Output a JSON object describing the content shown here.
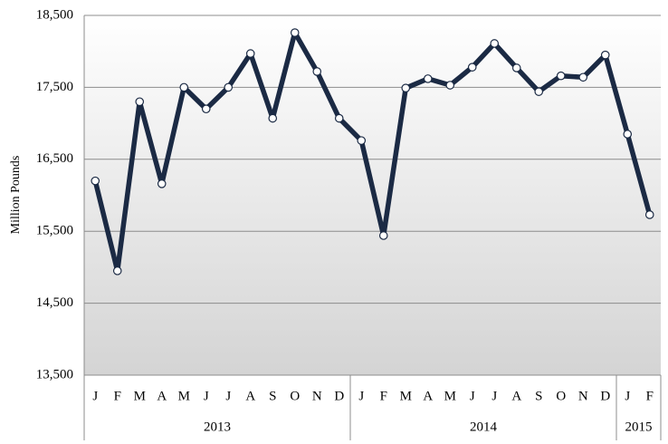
{
  "chart_data": {
    "type": "line",
    "y_label": "Million Pounds",
    "categories": [
      "J",
      "F",
      "M",
      "A",
      "M",
      "J",
      "J",
      "A",
      "S",
      "O",
      "N",
      "D",
      "J",
      "F",
      "M",
      "A",
      "M",
      "J",
      "J",
      "A",
      "S",
      "O",
      "N",
      "D",
      "J",
      "F"
    ],
    "x_groups": [
      {
        "label": "2013",
        "count": 12
      },
      {
        "label": "2014",
        "count": 12
      },
      {
        "label": "2015",
        "count": 2
      }
    ],
    "series": [
      {
        "color": "#1b2a44",
        "values": [
          16200,
          14950,
          17300,
          16160,
          17500,
          17200,
          17500,
          17970,
          17070,
          18260,
          17720,
          17070,
          16760,
          15440,
          17490,
          17620,
          17530,
          17780,
          18110,
          17770,
          17440,
          17660,
          17640,
          17950,
          16850,
          15730
        ]
      }
    ],
    "ylim": [
      13500,
      18500
    ],
    "yticks": [
      {
        "value": 13500,
        "label": "13,500"
      },
      {
        "value": 14500,
        "label": "14,500"
      },
      {
        "value": 15500,
        "label": "15,500"
      },
      {
        "value": 16500,
        "label": "16,500"
      },
      {
        "value": 17500,
        "label": "17,500"
      },
      {
        "value": 18500,
        "label": "18,500"
      }
    ],
    "grid": true
  }
}
